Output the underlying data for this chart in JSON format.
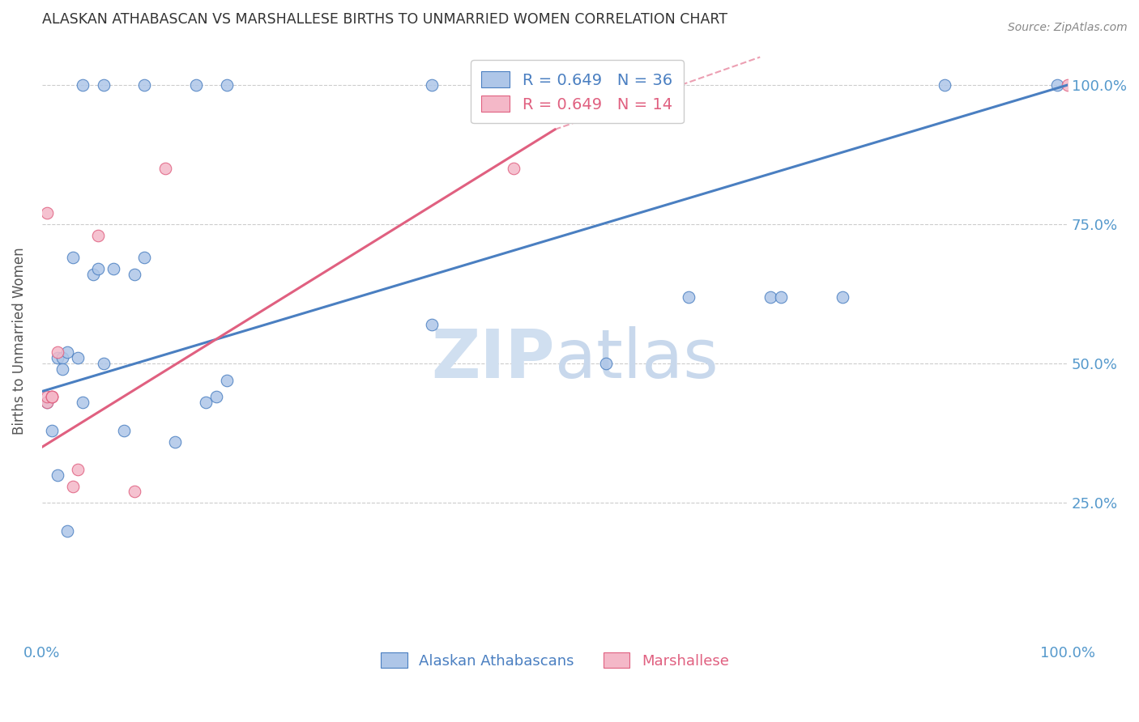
{
  "title": "ALASKAN ATHABASCAN VS MARSHALLESE BIRTHS TO UNMARRIED WOMEN CORRELATION CHART",
  "source": "Source: ZipAtlas.com",
  "ylabel": "Births to Unmarried Women",
  "xlim": [
    0.0,
    1.0
  ],
  "ylim": [
    0.0,
    1.08
  ],
  "blue_color": "#aec6e8",
  "pink_color": "#f4b8c8",
  "blue_line_color": "#4a7fc1",
  "pink_line_color": "#e06080",
  "grid_color": "#cccccc",
  "axis_label_color": "#5599cc",
  "watermark_color": "#dce8f5",
  "blue_scatter_x": [
    0.04,
    0.06,
    0.1,
    0.18,
    0.38,
    0.015,
    0.02,
    0.025,
    0.03,
    0.035,
    0.04,
    0.05,
    0.055,
    0.06,
    0.07,
    0.08,
    0.09,
    0.1,
    0.13,
    0.15,
    0.16,
    0.17,
    0.18,
    0.38,
    0.55,
    0.63,
    0.71,
    0.72,
    0.78,
    0.88,
    0.99,
    0.005,
    0.01,
    0.015,
    0.02,
    0.025
  ],
  "blue_scatter_y": [
    1.0,
    1.0,
    1.0,
    1.0,
    1.0,
    0.51,
    0.51,
    0.52,
    0.69,
    0.51,
    0.43,
    0.66,
    0.67,
    0.5,
    0.67,
    0.38,
    0.66,
    0.69,
    0.36,
    1.0,
    0.43,
    0.44,
    0.47,
    0.57,
    0.5,
    0.62,
    0.62,
    0.62,
    0.62,
    1.0,
    1.0,
    0.43,
    0.38,
    0.3,
    0.49,
    0.2
  ],
  "pink_scatter_x": [
    0.005,
    0.005,
    0.005,
    0.01,
    0.01,
    0.01,
    0.015,
    0.03,
    0.035,
    0.055,
    0.09,
    0.12,
    0.46,
    1.0
  ],
  "pink_scatter_y": [
    0.43,
    0.44,
    0.77,
    0.44,
    0.44,
    0.44,
    0.52,
    0.28,
    0.31,
    0.73,
    0.27,
    0.85,
    0.85,
    1.0
  ],
  "blue_line_x0": 0.0,
  "blue_line_y0": 0.45,
  "blue_line_x1": 1.0,
  "blue_line_y1": 1.0,
  "pink_line_x0": 0.0,
  "pink_line_y0": 0.35,
  "pink_line_x1": 0.5,
  "pink_line_y1": 0.92,
  "pink_line_dash_x0": 0.5,
  "pink_line_dash_y0": 0.92,
  "pink_line_dash_x1": 0.7,
  "pink_line_dash_y1": 1.05,
  "legend_blue_label": "R = 0.649   N = 36",
  "legend_pink_label": "R = 0.649   N = 14",
  "bottom_legend_blue": "Alaskan Athabascans",
  "bottom_legend_pink": "Marshallese",
  "marker_size": 110
}
